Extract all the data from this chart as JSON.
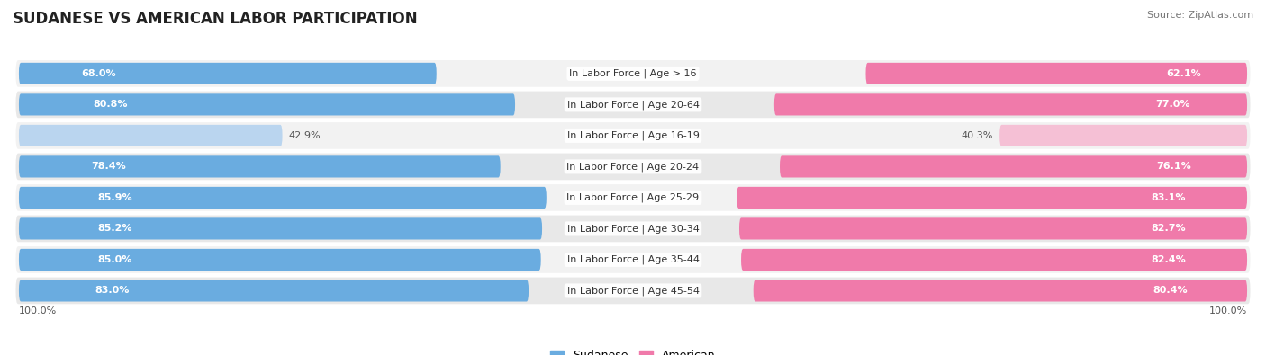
{
  "title": "SUDANESE VS AMERICAN LABOR PARTICIPATION",
  "source": "Source: ZipAtlas.com",
  "categories": [
    "In Labor Force | Age > 16",
    "In Labor Force | Age 20-64",
    "In Labor Force | Age 16-19",
    "In Labor Force | Age 20-24",
    "In Labor Force | Age 25-29",
    "In Labor Force | Age 30-34",
    "In Labor Force | Age 35-44",
    "In Labor Force | Age 45-54"
  ],
  "sudanese": [
    68.0,
    80.8,
    42.9,
    78.4,
    85.9,
    85.2,
    85.0,
    83.0
  ],
  "american": [
    62.1,
    77.0,
    40.3,
    76.1,
    83.1,
    82.7,
    82.4,
    80.4
  ],
  "sudanese_color": "#6aace0",
  "sudanese_color_light": "#bad5ef",
  "american_color": "#f07aaa",
  "american_color_light": "#f5c0d5",
  "bg_color": "#ffffff",
  "row_bg_color_odd": "#f2f2f2",
  "row_bg_color_even": "#e8e8e8",
  "max_val": 100.0,
  "bar_height": 0.7,
  "title_fontsize": 12,
  "label_fontsize": 8.0,
  "value_fontsize": 8.0
}
